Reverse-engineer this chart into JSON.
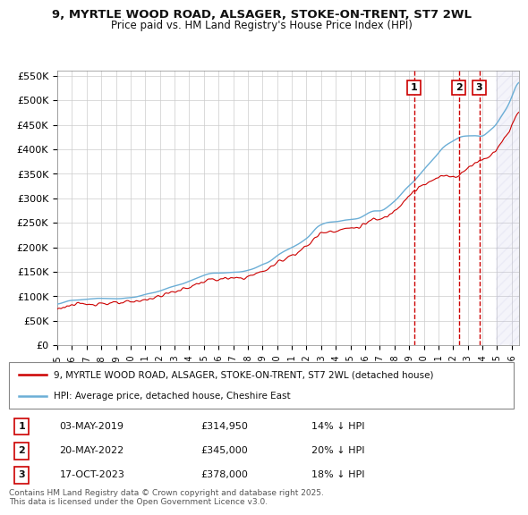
{
  "title_line1": "9, MYRTLE WOOD ROAD, ALSAGER, STOKE-ON-TRENT, ST7 2WL",
  "title_line2": "Price paid vs. HM Land Registry's House Price Index (HPI)",
  "ylim_min": 0,
  "ylim_max": 560000,
  "yticks": [
    0,
    50000,
    100000,
    150000,
    200000,
    250000,
    300000,
    350000,
    400000,
    450000,
    500000,
    550000
  ],
  "ytick_labels": [
    "£0",
    "£50K",
    "£100K",
    "£150K",
    "£200K",
    "£250K",
    "£300K",
    "£350K",
    "£400K",
    "£450K",
    "£500K",
    "£550K"
  ],
  "xlim_min": 1995.0,
  "xlim_max": 2026.5,
  "xtick_years": [
    1995,
    1996,
    1997,
    1998,
    1999,
    2000,
    2001,
    2002,
    2003,
    2004,
    2005,
    2006,
    2007,
    2008,
    2009,
    2010,
    2011,
    2012,
    2013,
    2014,
    2015,
    2016,
    2017,
    2018,
    2019,
    2020,
    2021,
    2022,
    2023,
    2024,
    2025,
    2026
  ],
  "hpi_color": "#6baed6",
  "price_color": "#cc0000",
  "vline_color": "#cc0000",
  "sale1_x": 2019.33,
  "sale2_x": 2022.38,
  "sale3_x": 2023.79,
  "sale1_price": 314950,
  "sale2_price": 345000,
  "sale3_price": 378000,
  "legend_line1": "9, MYRTLE WOOD ROAD, ALSAGER, STOKE-ON-TRENT, ST7 2WL (detached house)",
  "legend_line2": "HPI: Average price, detached house, Cheshire East",
  "table_entries": [
    {
      "num": "1",
      "date": "03-MAY-2019",
      "price": "£314,950",
      "pct": "14% ↓ HPI"
    },
    {
      "num": "2",
      "date": "20-MAY-2022",
      "price": "£345,000",
      "pct": "20% ↓ HPI"
    },
    {
      "num": "3",
      "date": "17-OCT-2023",
      "price": "£378,000",
      "pct": "18% ↓ HPI"
    }
  ],
  "footnote": "Contains HM Land Registry data © Crown copyright and database right 2025.\nThis data is licensed under the Open Government Licence v3.0.",
  "bg_color": "#ffffff",
  "grid_color": "#cccccc",
  "hatch_color": "#aaaadd",
  "start_year": 1995,
  "end_year_int": 2027,
  "n_points": 379
}
